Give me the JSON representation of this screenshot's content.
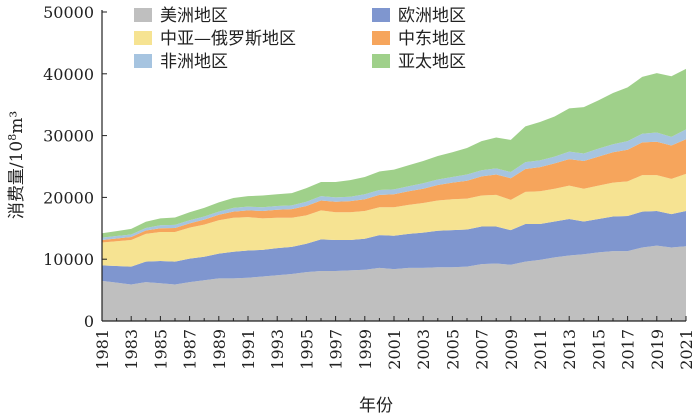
{
  "chart_data": {
    "type": "area",
    "stacked": true,
    "title": "",
    "xlabel": "年份",
    "ylabel": "消费量/10⁸m³",
    "ylabel_main": "消费量/10",
    "ylabel_sup": "8",
    "ylabel_unit": "m³",
    "ylim": [
      0,
      50000
    ],
    "yticks": [
      0,
      10000,
      20000,
      30000,
      40000,
      50000
    ],
    "ytick_labels": [
      "0",
      "10000",
      "20000",
      "30000",
      "40000",
      "50000"
    ],
    "x": [
      1981,
      1982,
      1983,
      1984,
      1985,
      1986,
      1987,
      1988,
      1989,
      1990,
      1991,
      1992,
      1993,
      1994,
      1995,
      1996,
      1997,
      1998,
      1999,
      2000,
      2001,
      2002,
      2003,
      2004,
      2005,
      2006,
      2007,
      2008,
      2009,
      2010,
      2011,
      2012,
      2013,
      2014,
      2015,
      2016,
      2017,
      2018,
      2019,
      2020,
      2021
    ],
    "xtick_labels": [
      "1981",
      "1983",
      "1985",
      "1987",
      "1989",
      "1991",
      "1993",
      "1995",
      "1997",
      "1999",
      "2001",
      "2003",
      "2005",
      "2007",
      "2009",
      "2011",
      "2013",
      "2015",
      "2017",
      "2019",
      "2021"
    ],
    "legend_position": "top-left",
    "series": [
      {
        "name": "美洲地区",
        "color": "#bfbfbf",
        "values": [
          6500,
          6200,
          5900,
          6300,
          6100,
          5900,
          6300,
          6600,
          6900,
          6900,
          7000,
          7200,
          7400,
          7600,
          7900,
          8100,
          8100,
          8200,
          8300,
          8600,
          8400,
          8600,
          8600,
          8700,
          8700,
          8800,
          9200,
          9300,
          9100,
          9600,
          9900,
          10300,
          10600,
          10800,
          11100,
          11300,
          11300,
          11900,
          12200,
          11900,
          12100
        ]
      },
      {
        "name": "欧洲地区",
        "color": "#7f96cf",
        "values": [
          2500,
          2700,
          2900,
          3300,
          3600,
          3700,
          3800,
          3800,
          4000,
          4300,
          4400,
          4300,
          4400,
          4400,
          4600,
          5100,
          5000,
          4900,
          5000,
          5300,
          5400,
          5500,
          5700,
          5900,
          6000,
          6000,
          6100,
          6000,
          5600,
          6100,
          5800,
          5800,
          5900,
          5300,
          5400,
          5600,
          5700,
          5800,
          5600,
          5400,
          5700
        ]
      },
      {
        "name": "中亚—俄罗斯地区",
        "color": "#f6e392",
        "values": [
          3700,
          4000,
          4300,
          4500,
          4700,
          4800,
          5000,
          5200,
          5400,
          5500,
          5400,
          5100,
          4900,
          4700,
          4600,
          4700,
          4500,
          4500,
          4500,
          4500,
          4600,
          4700,
          4800,
          4900,
          5000,
          5000,
          5000,
          5100,
          4900,
          5200,
          5300,
          5300,
          5400,
          5300,
          5400,
          5500,
          5600,
          5900,
          5800,
          5700,
          6000
        ]
      },
      {
        "name": "中东地区",
        "color": "#f6a55c",
        "values": [
          400,
          450,
          500,
          550,
          600,
          650,
          700,
          800,
          900,
          1000,
          1100,
          1200,
          1300,
          1400,
          1500,
          1600,
          1700,
          1800,
          1900,
          2000,
          2100,
          2200,
          2300,
          2500,
          2700,
          2900,
          3100,
          3300,
          3500,
          3700,
          3900,
          4100,
          4300,
          4500,
          4700,
          4900,
          5100,
          5300,
          5400,
          5400,
          5600
        ]
      },
      {
        "name": "非洲地区",
        "color": "#a6c4e0",
        "values": [
          400,
          400,
          400,
          400,
          500,
          500,
          500,
          500,
          500,
          600,
          600,
          600,
          600,
          600,
          700,
          700,
          700,
          700,
          800,
          800,
          800,
          800,
          900,
          900,
          900,
          1000,
          1000,
          1000,
          1000,
          1100,
          1100,
          1100,
          1200,
          1200,
          1300,
          1300,
          1400,
          1400,
          1500,
          1400,
          1600
        ]
      },
      {
        "name": "亚太地区",
        "color": "#9fd08a",
        "values": [
          700,
          800,
          900,
          1000,
          1100,
          1200,
          1300,
          1400,
          1500,
          1600,
          1700,
          1900,
          1900,
          2000,
          2200,
          2300,
          2500,
          2700,
          2800,
          3000,
          3200,
          3400,
          3600,
          3800,
          4000,
          4300,
          4700,
          5000,
          5200,
          5800,
          6200,
          6500,
          7000,
          7500,
          7800,
          8300,
          8700,
          9200,
          9600,
          9800,
          9800
        ]
      }
    ]
  }
}
